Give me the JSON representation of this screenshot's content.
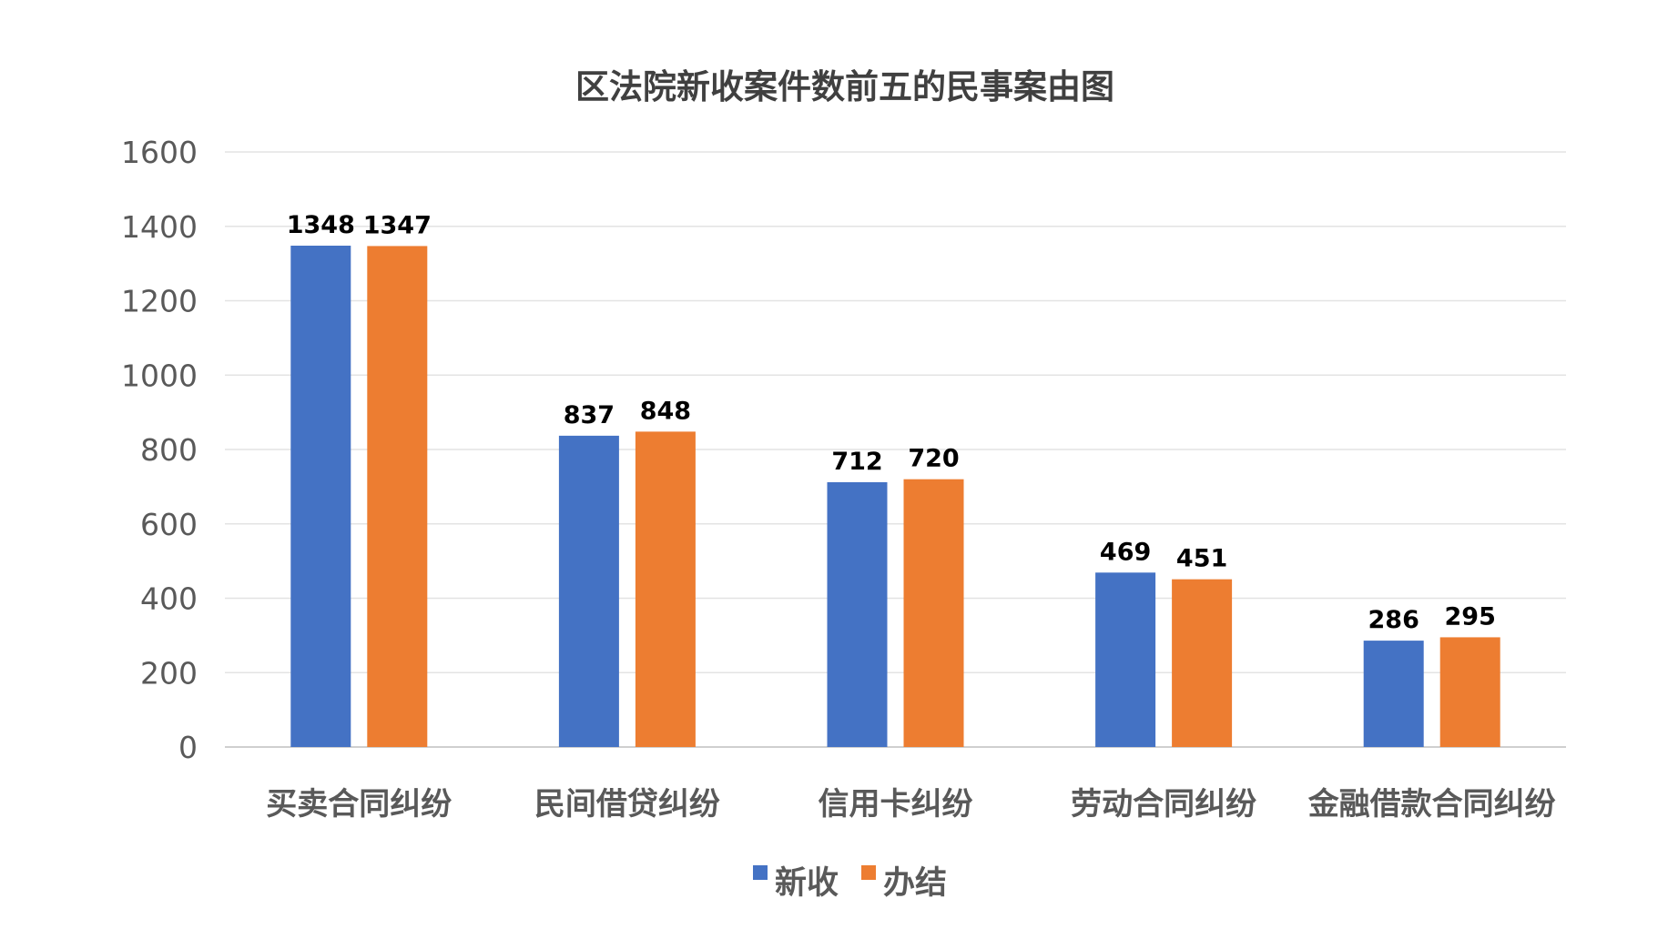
{
  "chart_data": {
    "type": "bar",
    "title": "区法院新收案件数前五的民事案由图",
    "categories": [
      "买卖合同纠纷",
      "民间借贷纠纷",
      "信用卡纠纷",
      "劳动合同纠纷",
      "金融借款合同纠纷"
    ],
    "series": [
      {
        "name": "新收",
        "color": "#4472C4",
        "values": [
          1348,
          837,
          712,
          469,
          286
        ]
      },
      {
        "name": "办结",
        "color": "#ED7D31",
        "values": [
          1347,
          848,
          720,
          451,
          295
        ]
      }
    ],
    "y_ticks": [
      "0",
      "200",
      "400",
      "600",
      "800",
      "1000",
      "1200",
      "1400",
      "1600"
    ],
    "ylim": [
      0,
      1600
    ],
    "grid": true,
    "legend_position": "bottom",
    "data_labels": true
  }
}
